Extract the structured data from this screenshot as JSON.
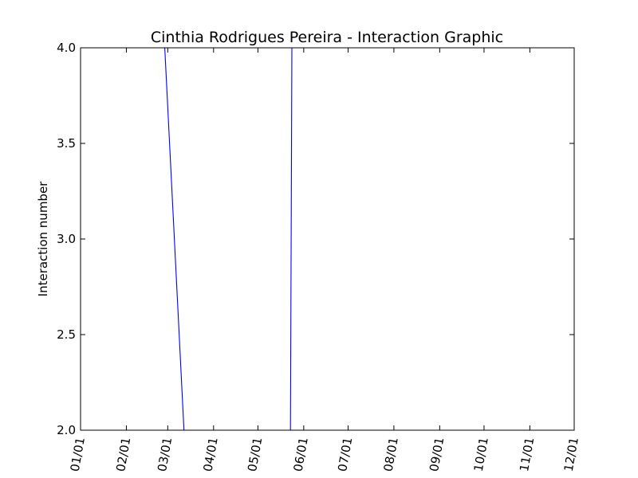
{
  "chart_data": {
    "type": "line",
    "title": "Cinthia Rodrigues Pereira - Interaction Graphic",
    "xlabel": "",
    "ylabel": "Interaction number",
    "xlim": [
      "01/01",
      "12/01"
    ],
    "ylim": [
      2.0,
      4.0
    ],
    "x_ticks": [
      "01/01",
      "02/01",
      "03/01",
      "04/01",
      "05/01",
      "06/01",
      "07/01",
      "08/01",
      "09/01",
      "10/01",
      "11/01",
      "12/01"
    ],
    "y_ticks": [
      "2.0",
      "2.5",
      "3.0",
      "3.5",
      "4.0"
    ],
    "grid": false,
    "legend": "none",
    "line_color": "#0000ff",
    "series": [
      {
        "x": [
          "02/27",
          "03/12",
          "05/23",
          "05/24"
        ],
        "y": [
          4.0,
          2.0,
          2.0,
          4.0
        ]
      }
    ]
  }
}
